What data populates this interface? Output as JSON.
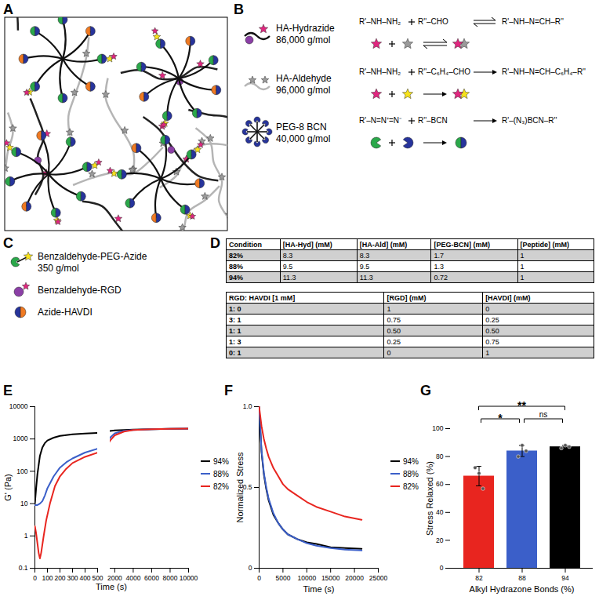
{
  "schematic": {
    "label": "A"
  },
  "components": {
    "label": "B",
    "rows": [
      {
        "name": "HA-Hydrazide",
        "mw": "86,000 g/mol",
        "reactants": [
          "R'–NH–NH₂",
          "R''–CHO"
        ],
        "product": "R'–NH–N=CH–R''",
        "reversible": true
      },
      {
        "name": "HA-Aldehyde",
        "mw": "96,000 g/mol",
        "reactants": [
          "R'–NH–NH₂",
          "R''–C₆H₄–CHO"
        ],
        "product": "R'–NH–N=CH–C₆H₄–R''",
        "reversible": false
      },
      {
        "name": "PEG-8 BCN",
        "mw": "40,000 g/mol",
        "reactants": [
          "R'–N=N⁺=N⁻",
          "R''–BCN"
        ],
        "product": "R'–(N₃)BCN–R''",
        "reversible": false
      }
    ]
  },
  "peptides": {
    "label": "C",
    "items": [
      {
        "name": "Benzaldehyde-PEG-Azide",
        "mw": "350 g/mol"
      },
      {
        "name": "Benzaldehyde-RGD"
      },
      {
        "name": "Azide-HAVDI"
      }
    ]
  },
  "tables": {
    "label": "D",
    "table1": {
      "header": [
        "Condition",
        "[HA-Hyd] (mM)",
        "[HA-Ald] (mM)",
        "[PEG-BCN] (mM)",
        "[Peptide] (mM)"
      ],
      "rows": [
        [
          "82%",
          "8.3",
          "8.3",
          "1.7",
          "1"
        ],
        [
          "88%",
          "9.5",
          "9.5",
          "1.3",
          "1"
        ],
        [
          "94%",
          "11.3",
          "11.3",
          "0.72",
          "1"
        ]
      ]
    },
    "table2": {
      "header": [
        "RGD: HAVDI [1 mM]",
        "[RGD] (mM)",
        "[HAVDI] (mM)"
      ],
      "rows": [
        [
          "1: 0",
          "1",
          "0"
        ],
        [
          "3: 1",
          "0.75",
          "0.25"
        ],
        [
          "1: 1",
          "0.50",
          "0.50"
        ],
        [
          "1: 3",
          "0.25",
          "0.75"
        ],
        [
          "0: 1",
          "0",
          "1"
        ]
      ]
    }
  },
  "chart_data": [
    {
      "panel": "E",
      "type": "line",
      "x_label": "Time (s)",
      "y_label": "G' (Pa)",
      "log": "y",
      "ylim": [
        0.1,
        10000
      ],
      "yticks": [
        0.1,
        1,
        10,
        100,
        1000,
        10000
      ],
      "x_segments": [
        {
          "xlim": [
            0,
            500
          ],
          "xticks": [
            0,
            100,
            200,
            300,
            400,
            500
          ]
        },
        {
          "xlim": [
            1500,
            10000
          ],
          "xticks": [
            2000,
            4000,
            6000,
            8000,
            10000
          ]
        }
      ],
      "legend": "right",
      "series": [
        {
          "name": "94%",
          "color": "#000000",
          "x": [
            0,
            10,
            20,
            40,
            60,
            80,
            100,
            150,
            200,
            300,
            400,
            500,
            1000,
            2000,
            4000,
            6000,
            8000,
            10000
          ],
          "values": [
            10,
            30,
            80,
            300,
            550,
            750,
            900,
            1100,
            1250,
            1400,
            1480,
            1550,
            1700,
            1850,
            1950,
            2000,
            2050,
            2100
          ]
        },
        {
          "name": "88%",
          "color": "#3b5fc9",
          "x": [
            0,
            20,
            40,
            60,
            80,
            100,
            150,
            200,
            250,
            300,
            400,
            500,
            1000,
            1500,
            2000,
            3000,
            4000,
            6000,
            8000,
            10000
          ],
          "values": [
            9,
            9,
            10,
            12,
            18,
            30,
            70,
            130,
            190,
            250,
            380,
            500,
            700,
            1100,
            1500,
            1800,
            1900,
            2000,
            2050,
            2100
          ]
        },
        {
          "name": "82%",
          "color": "#e8251f",
          "x": [
            0,
            10,
            20,
            30,
            40,
            50,
            70,
            90,
            120,
            160,
            200,
            250,
            300,
            400,
            500,
            1000,
            1500,
            2000,
            3000,
            4000,
            6000,
            8000,
            10000
          ],
          "values": [
            2,
            1.2,
            0.6,
            0.3,
            0.2,
            0.3,
            1,
            3,
            10,
            35,
            70,
            120,
            180,
            280,
            380,
            500,
            900,
            1300,
            1700,
            1900,
            2000,
            2050,
            2100
          ]
        }
      ]
    },
    {
      "panel": "F",
      "type": "line",
      "x_label": "Time (s)",
      "y_label": "Normalized Stress",
      "xlim": [
        0,
        25000
      ],
      "xticks": [
        0,
        5000,
        10000,
        15000,
        20000,
        25000
      ],
      "ylim": [
        0,
        1
      ],
      "yticks": [
        0,
        0.5,
        {
          "value": 1,
          "label": "1.0"
        }
      ],
      "legend": "right",
      "x": [
        0,
        500,
        1000,
        1500,
        2000,
        3000,
        4000,
        5000,
        6000,
        8000,
        10000,
        12000,
        15000,
        18000,
        21500
      ],
      "series": [
        {
          "name": "94%",
          "color": "#000000",
          "values": [
            1,
            0.72,
            0.58,
            0.49,
            0.42,
            0.33,
            0.28,
            0.24,
            0.21,
            0.18,
            0.16,
            0.15,
            0.13,
            0.125,
            0.12
          ]
        },
        {
          "name": "88%",
          "color": "#3b5fc9",
          "values": [
            1,
            0.73,
            0.59,
            0.5,
            0.43,
            0.34,
            0.28,
            0.24,
            0.21,
            0.18,
            0.155,
            0.14,
            0.125,
            0.115,
            0.11
          ]
        },
        {
          "name": "82%",
          "color": "#e8251f",
          "values": [
            1,
            0.88,
            0.8,
            0.74,
            0.69,
            0.62,
            0.57,
            0.52,
            0.49,
            0.45,
            0.41,
            0.38,
            0.35,
            0.32,
            0.3
          ]
        }
      ]
    },
    {
      "panel": "G",
      "type": "bar",
      "x_label": "Alkyl Hydrazone Bonds (%)",
      "y_label": "Stress Relaxed (%)",
      "categories": [
        "82",
        "88",
        "94"
      ],
      "values": [
        66,
        84,
        87
      ],
      "errors": [
        7,
        4,
        1
      ],
      "points": [
        [
          72,
          68,
          57
        ],
        [
          80,
          88,
          84
        ],
        [
          86,
          88,
          87
        ]
      ],
      "colors": [
        "#e8251f",
        "#3b5fc9",
        "#000000"
      ],
      "ylim": [
        0,
        100
      ],
      "yticks": [
        0,
        20,
        40,
        60,
        80,
        100
      ],
      "significance": [
        {
          "from": "82",
          "to": "88",
          "label": "*"
        },
        {
          "from": "82",
          "to": "94",
          "label": "**"
        },
        {
          "from": "88",
          "to": "94",
          "label": "ns"
        }
      ]
    }
  ]
}
